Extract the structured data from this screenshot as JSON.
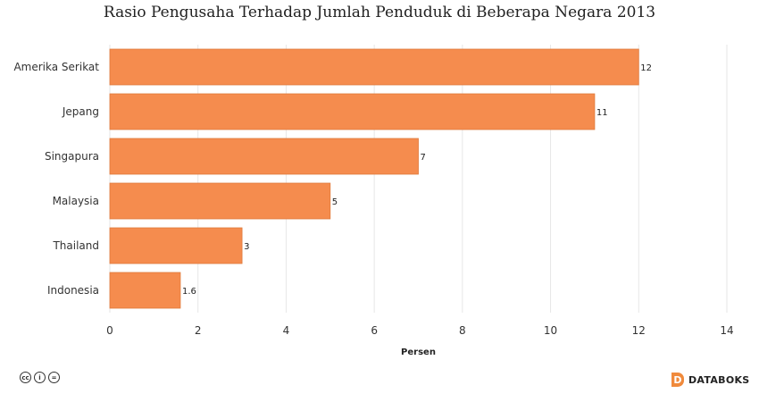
{
  "chart_data": {
    "type": "bar",
    "orientation": "horizontal",
    "title": "Rasio Pengusaha Terhadap Jumlah Penduduk di Beberapa Negara 2013",
    "xlabel": "Persen",
    "ylabel": "",
    "categories": [
      "Amerika Serikat",
      "Jepang",
      "Singapura",
      "Malaysia",
      "Thailand",
      "Indonesia"
    ],
    "values": [
      12,
      11,
      7,
      5,
      3,
      1.6
    ],
    "value_labels": [
      "12",
      "11",
      "7",
      "5",
      "3",
      "1.6"
    ],
    "xlim": [
      0,
      14
    ],
    "xticks": [
      0,
      2,
      4,
      6,
      8,
      10,
      12,
      14
    ],
    "grid": true,
    "bar_color": "#f58c4e",
    "bar_stroke": "#e07a3c"
  },
  "footer": {
    "license_icons": [
      "cc",
      "i",
      "="
    ],
    "brand_logo": "D",
    "brand": "DATABOKS"
  }
}
